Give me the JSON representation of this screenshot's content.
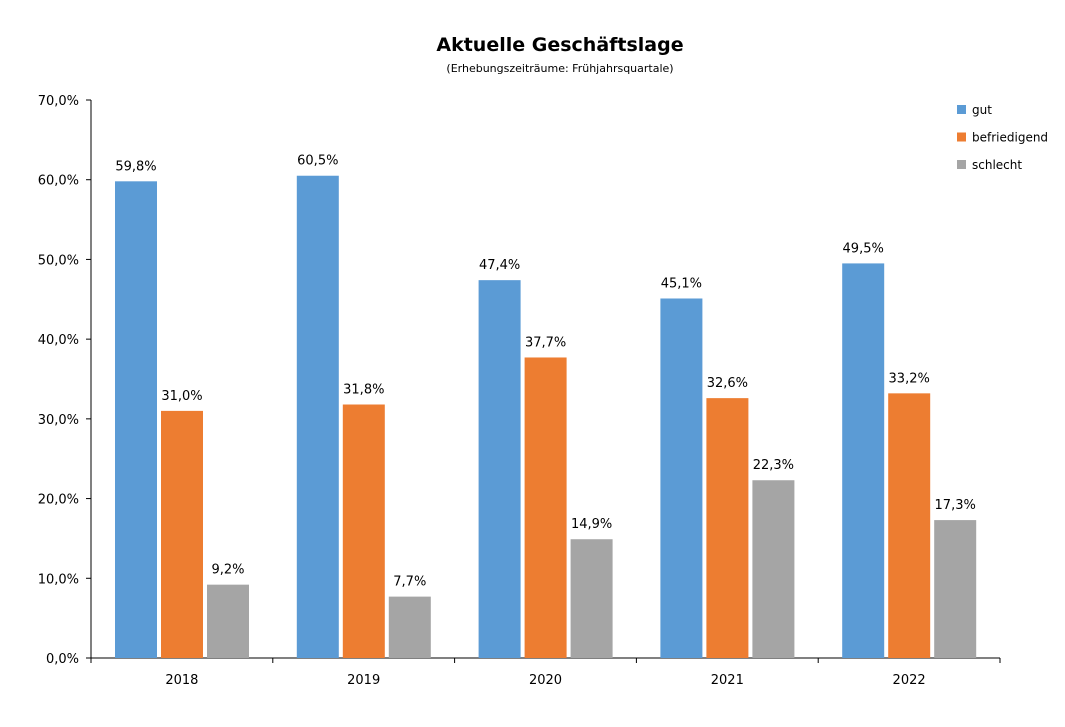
{
  "chart_data": {
    "type": "bar",
    "title": "Aktuelle Geschäftslage",
    "subtitle": "(Erhebungszeiträume: Frühjahrsquartale)",
    "xlabel": "",
    "ylabel": "",
    "ylim": [
      0,
      70
    ],
    "yticks": [
      "0,0%",
      "10,0%",
      "20,0%",
      "30,0%",
      "40,0%",
      "50,0%",
      "60,0%",
      "70,0%"
    ],
    "categories": [
      "2018",
      "2019",
      "2020",
      "2021",
      "2022"
    ],
    "legend_position": "top-right",
    "grid": false,
    "series": [
      {
        "name": "gut",
        "color": "#5B9BD5",
        "values": [
          59.8,
          60.5,
          47.4,
          45.1,
          49.5
        ],
        "labels": [
          "59,8%",
          "60,5%",
          "47,4%",
          "45,1%",
          "49,5%"
        ]
      },
      {
        "name": "befriedigend",
        "color": "#ED7D31",
        "values": [
          31.0,
          31.8,
          37.7,
          32.6,
          33.2
        ],
        "labels": [
          "31,0%",
          "31,8%",
          "37,7%",
          "32,6%",
          "33,2%"
        ]
      },
      {
        "name": "schlecht",
        "color": "#A5A5A5",
        "values": [
          9.2,
          7.7,
          14.9,
          22.3,
          17.3
        ],
        "labels": [
          "9,2%",
          "7,7%",
          "14,9%",
          "22,3%",
          "17,3%"
        ]
      }
    ]
  }
}
